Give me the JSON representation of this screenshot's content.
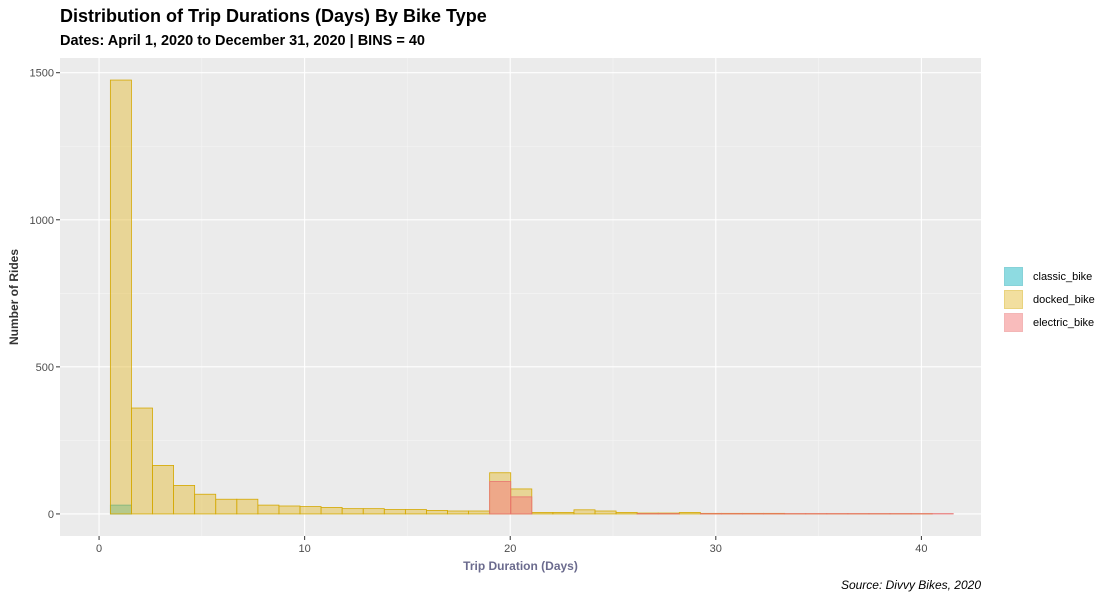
{
  "title": "Distribution of Trip Durations (Days) By Bike Type",
  "subtitle": "Dates: April 1, 2020 to December 31, 2020 | BINS = 40",
  "caption": "Source: Divvy Bikes, 2020",
  "chart_data": {
    "type": "bar",
    "xlabel": "Trip Duration (Days)",
    "ylabel": "Number of Rides",
    "xlim": [
      -1.9,
      42.9
    ],
    "ylim": [
      -75,
      1550
    ],
    "x_ticks": [
      0,
      10,
      20,
      30,
      40
    ],
    "y_ticks": [
      0,
      500,
      1000,
      1500
    ],
    "grid": true,
    "legend_position": "right",
    "bin_width": 1.025,
    "bin_start": 0.55,
    "series": [
      {
        "name": "classic_bike",
        "fill": "#1fb9c4",
        "stroke": "#12a7b2",
        "values": [
          30,
          0,
          0,
          0,
          0,
          0,
          0,
          0,
          0,
          0,
          0,
          0,
          0,
          0,
          0,
          0,
          0,
          0,
          0,
          0,
          0,
          0,
          0,
          0,
          0,
          0,
          0,
          0,
          0,
          0,
          0,
          0,
          0,
          0,
          0,
          0,
          0,
          0,
          0,
          0
        ]
      },
      {
        "name": "docked_bike",
        "fill": "#e6c042",
        "stroke": "#d4a800",
        "values": [
          1475,
          360,
          165,
          97,
          67,
          50,
          50,
          30,
          27,
          25,
          22,
          18,
          18,
          15,
          15,
          12,
          10,
          10,
          140,
          85,
          5,
          5,
          14,
          10,
          5,
          3,
          3,
          5,
          2,
          2,
          2,
          2,
          1,
          1,
          1,
          1,
          1,
          1,
          1,
          0
        ]
      },
      {
        "name": "electric_bike",
        "fill": "#f47b7b",
        "stroke": "#e8706f",
        "values": [
          0,
          0,
          0,
          0,
          0,
          0,
          0,
          0,
          0,
          0,
          0,
          0,
          0,
          0,
          0,
          0,
          0,
          0,
          110,
          58,
          0,
          0,
          0,
          0,
          0,
          1,
          1,
          0,
          1,
          1,
          1,
          1,
          1,
          1,
          1,
          1,
          1,
          1,
          1,
          1
        ]
      }
    ]
  }
}
